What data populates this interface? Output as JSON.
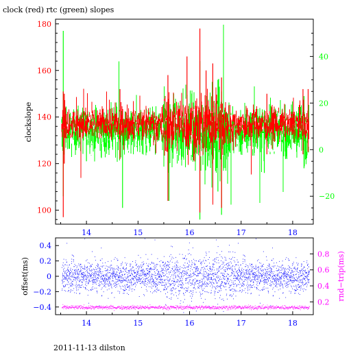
{
  "title": "clock (red) rtc (green) slopes",
  "footer": "2011-11-13 dilston",
  "colors": {
    "clock": "#ff0000",
    "rtc": "#00ff00",
    "offset": "#0000ff",
    "rndtrip": "#ff00ff",
    "frame": "#000000"
  },
  "chart_data": [
    {
      "type": "line",
      "title": "clock (red) rtc (green) slopes",
      "xlabel": "",
      "ylabel": "clockslope",
      "y2label": "",
      "xlim": [
        13.4,
        18.4
      ],
      "ylim": [
        94,
        182
      ],
      "y2lim": [
        -32,
        56
      ],
      "xticks": [
        "14",
        "15",
        "16",
        "17",
        "18"
      ],
      "yticks": [
        "100",
        "120",
        "140",
        "160",
        "180"
      ],
      "y2ticks": [
        "−20",
        "0",
        "20",
        "40"
      ],
      "grid": false,
      "series": [
        {
          "name": "clock (red)",
          "color": "#ff0000",
          "axis": "left",
          "baseline": 137,
          "band": 3.5,
          "x_start": 13.52,
          "x_end": 18.32,
          "spikes": [
            {
              "x": 13.55,
              "lo": 97,
              "hi": 151
            },
            {
              "x": 13.57,
              "lo": 120,
              "hi": 150
            },
            {
              "x": 14.65,
              "lo": 122,
              "hi": 152
            },
            {
              "x": 15.58,
              "lo": 104,
              "hi": 158
            },
            {
              "x": 15.95,
              "lo": 128,
              "hi": 166
            },
            {
              "x": 16.2,
              "lo": 99,
              "hi": 178
            },
            {
              "x": 16.32,
              "lo": 125,
              "hi": 160
            },
            {
              "x": 16.45,
              "lo": 120,
              "hi": 163
            },
            {
              "x": 16.62,
              "lo": 101,
              "hi": 157
            },
            {
              "x": 17.5,
              "lo": 124,
              "hi": 150
            },
            {
              "x": 18.2,
              "lo": 124,
              "hi": 152
            },
            {
              "x": 18.3,
              "lo": 125,
              "hi": 152
            }
          ]
        },
        {
          "name": "rtc (green)",
          "color": "#00ff00",
          "axis": "right",
          "baseline": 8,
          "band": 5,
          "x_start": 13.52,
          "x_end": 18.32,
          "spikes": [
            {
              "x": 13.55,
              "lo": -20,
              "hi": 51
            },
            {
              "x": 14.0,
              "lo": -5,
              "hi": 15
            },
            {
              "x": 14.7,
              "lo": -25,
              "hi": 16
            },
            {
              "x": 15.6,
              "lo": -22,
              "hi": 22
            },
            {
              "x": 16.2,
              "lo": -30,
              "hi": 38
            },
            {
              "x": 16.55,
              "lo": -18,
              "hi": 30
            },
            {
              "x": 16.62,
              "lo": -28,
              "hi": 25
            },
            {
              "x": 17.45,
              "lo": -10,
              "hi": 17
            },
            {
              "x": 18.22,
              "lo": -8,
              "hi": 23
            }
          ]
        }
      ]
    },
    {
      "type": "scatter",
      "title": "",
      "xlabel": "",
      "ylabel": "offset(ms)",
      "y2label": "rnd−trip(ms)",
      "xlim": [
        13.4,
        18.4
      ],
      "ylim": [
        -0.5,
        0.5
      ],
      "y2lim": [
        0.04,
        1.0
      ],
      "xticks": [
        "14",
        "15",
        "16",
        "17",
        "18"
      ],
      "yticks": [
        "−0.4",
        "−0.2",
        "0",
        "0.2",
        "0.4"
      ],
      "y2ticks": [
        "0.2",
        "0.4",
        "0.6",
        "0.8"
      ],
      "grid": false,
      "series": [
        {
          "name": "offset",
          "color": "#0000ff",
          "axis": "left",
          "center": 0.0,
          "spread": 0.1,
          "x_start": 13.52,
          "x_end": 18.32
        },
        {
          "name": "rnd-trip",
          "color": "#ff00ff",
          "axis": "right",
          "center": 0.13,
          "spread": 0.012,
          "x_start": 13.52,
          "x_end": 18.32
        }
      ]
    }
  ]
}
